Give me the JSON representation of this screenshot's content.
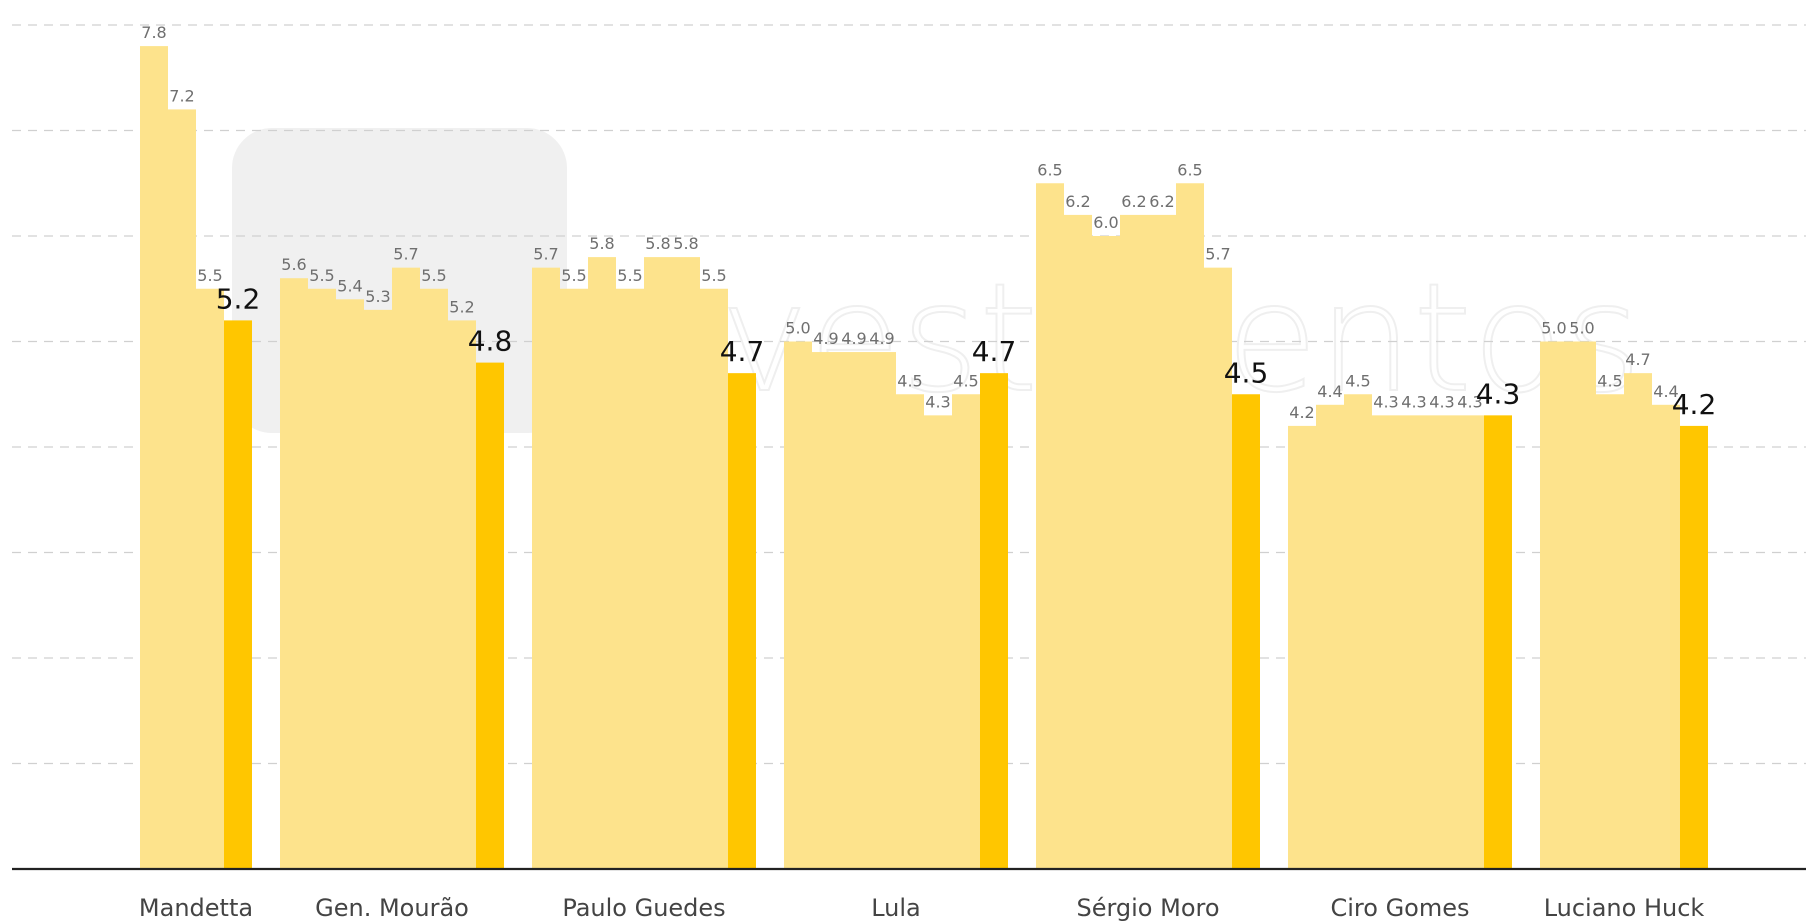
{
  "chart_data": {
    "type": "bar",
    "categories": [
      "Mandetta",
      "Gen. Mourão",
      "Paulo Guedes",
      "Lula",
      "Sérgio Moro",
      "Ciro Gomes",
      "Luciano Huck"
    ],
    "series_values": [
      [
        7.8,
        7.2,
        5.5,
        5.2
      ],
      [
        5.6,
        5.5,
        5.4,
        5.3,
        5.7,
        5.5,
        5.2,
        4.8
      ],
      [
        5.7,
        5.5,
        5.8,
        5.5,
        5.8,
        5.8,
        5.5,
        4.7
      ],
      [
        5.0,
        4.9,
        4.9,
        4.9,
        4.5,
        4.3,
        4.5,
        4.7
      ],
      [
        6.5,
        6.2,
        6.0,
        6.2,
        6.2,
        6.5,
        5.7,
        4.5
      ],
      [
        4.2,
        4.4,
        4.5,
        4.3,
        4.3,
        4.3,
        4.3,
        4.3
      ],
      [
        5.0,
        5.0,
        4.5,
        4.7,
        4.4,
        4.2
      ]
    ],
    "value_labels": [
      [
        "7.8",
        "7.2",
        "5.5",
        "5.2"
      ],
      [
        "5.6",
        "5.5",
        "5.4",
        "5.3",
        "5.7",
        "5.5",
        "5.2",
        "4.8"
      ],
      [
        "5.7",
        "5.5",
        "5.8",
        "5.5",
        "5.8",
        "5.8",
        "5.5",
        "4.7"
      ],
      [
        "5.0",
        "4.9",
        "4.9",
        "4.9",
        "4.5",
        "4.3",
        "4.5",
        "4.7"
      ],
      [
        "6.5",
        "6.2",
        "6.0",
        "6.2",
        "6.2",
        "6.5",
        "5.7",
        "4.5"
      ],
      [
        "4.2",
        "4.4",
        "4.5",
        "4.3",
        "4.3",
        "4.3",
        "4.3",
        "4.3"
      ],
      [
        "5.0",
        "5.0",
        "4.5",
        "4.7",
        "4.4",
        "4.2"
      ]
    ],
    "ylim": [
      0,
      8.2
    ],
    "grid": true,
    "title": "",
    "xlabel": "",
    "ylabel": ""
  },
  "colors": {
    "history_bar": "#fde38c",
    "latest_bar": "#ffc600",
    "gridline": "#d0d0d0",
    "baseline": "#222222",
    "watermark": "#f0f0f0"
  },
  "watermark": {
    "logo_text": "vestimentos"
  }
}
